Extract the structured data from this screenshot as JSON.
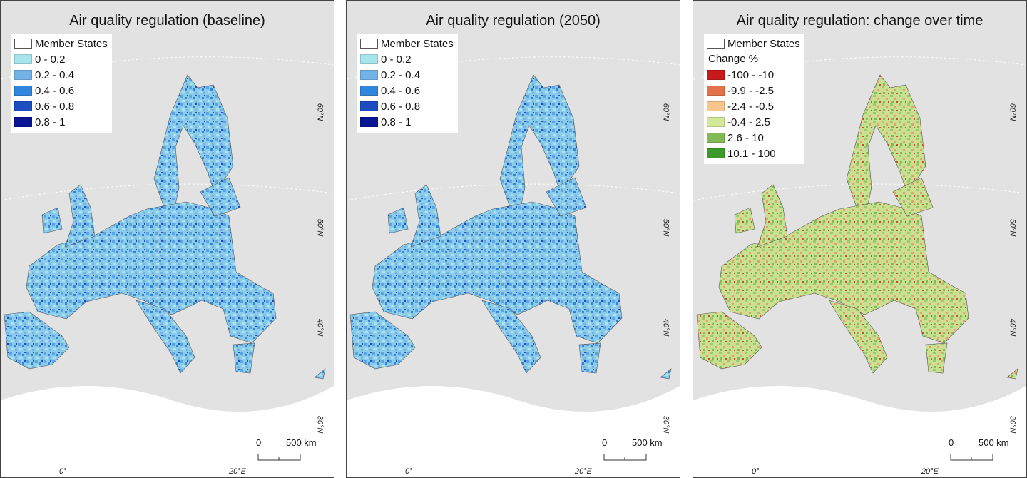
{
  "panels": [
    {
      "title": "Air quality regulation (baseline)",
      "legend": {
        "outline_label": "Member States",
        "heading": null,
        "classes": [
          {
            "label": "0 - 0.2",
            "color": "#a8e4ec"
          },
          {
            "label": "0.2 - 0.4",
            "color": "#73b2e6"
          },
          {
            "label": "0.4 - 0.6",
            "color": "#2f86dc"
          },
          {
            "label": "0.6 - 0.8",
            "color": "#1c4ec2"
          },
          {
            "label": "0.8 - 1",
            "color": "#0a1694"
          }
        ]
      }
    },
    {
      "title": "Air quality regulation (2050)",
      "legend": {
        "outline_label": "Member States",
        "heading": null,
        "classes": [
          {
            "label": "0 - 0.2",
            "color": "#a8e4ec"
          },
          {
            "label": "0.2 - 0.4",
            "color": "#73b2e6"
          },
          {
            "label": "0.4 - 0.6",
            "color": "#2f86dc"
          },
          {
            "label": "0.6 - 0.8",
            "color": "#1c4ec2"
          },
          {
            "label": "0.8 - 1",
            "color": "#0a1694"
          }
        ]
      }
    },
    {
      "title": "Air quality regulation: change over time",
      "legend": {
        "outline_label": "Member States",
        "heading": "Change %",
        "classes": [
          {
            "label": "-100 - -10",
            "color": "#c81a1a"
          },
          {
            "label": "-9.9 - -2.5",
            "color": "#e2724a"
          },
          {
            "label": "-2.4 - -0.5",
            "color": "#f7c68c"
          },
          {
            "label": "-0.4 - 2.5",
            "color": "#d4e89a"
          },
          {
            "label": "2.6 - 10",
            "color": "#82bb55"
          },
          {
            "label": "10.1 - 100",
            "color": "#3c9a2a"
          }
        ]
      }
    }
  ],
  "graticule": {
    "lat_labels": [
      "60°N",
      "50°N",
      "40°N",
      "30°N"
    ],
    "lon_labels": [
      "0°",
      "20°E"
    ]
  },
  "scale_bar": {
    "start": "0",
    "end": "500 km"
  }
}
